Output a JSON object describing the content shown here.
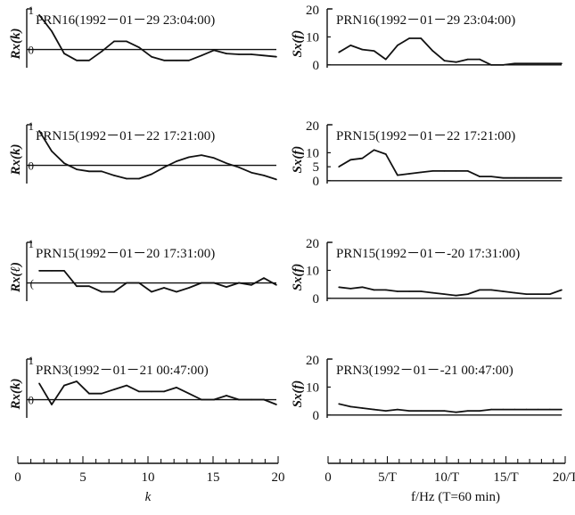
{
  "figure": {
    "left_xlabel": "k",
    "right_xlabel": "f/Hz  (T=60 min)"
  },
  "colors": {
    "ink": "#111111"
  },
  "chart_data": [
    {
      "type": "line",
      "column": "left",
      "row": 0,
      "title": "PRN16(1992－01－29  23:04:00)",
      "ylabel": "Rx(k)",
      "yticks": [
        "1",
        "0"
      ],
      "ylim": [
        -0.45,
        1.0
      ],
      "xlim": [
        0,
        20
      ],
      "x": [
        1,
        2,
        3,
        4,
        5,
        6,
        7,
        8,
        9,
        10,
        11,
        12,
        13,
        14,
        15,
        16,
        17,
        18,
        19,
        20
      ],
      "values": [
        0.85,
        0.45,
        -0.1,
        -0.27,
        -0.27,
        -0.05,
        0.2,
        0.2,
        0.05,
        -0.18,
        -0.27,
        -0.27,
        -0.27,
        -0.15,
        -0.02,
        -0.1,
        -0.12,
        -0.12,
        -0.15,
        -0.18
      ]
    },
    {
      "type": "line",
      "column": "left",
      "row": 1,
      "title": "PRN15(1992－01－22  17:21:00)",
      "ylabel": "Rx(k)",
      "yticks": [
        "1",
        "0"
      ],
      "ylim": [
        -0.45,
        1.0
      ],
      "xlim": [
        0,
        20
      ],
      "x": [
        1,
        2,
        3,
        4,
        5,
        6,
        7,
        8,
        9,
        10,
        11,
        12,
        13,
        14,
        15,
        16,
        17,
        18,
        19,
        20
      ],
      "values": [
        0.85,
        0.35,
        0.05,
        -0.1,
        -0.15,
        -0.15,
        -0.25,
        -0.33,
        -0.33,
        -0.22,
        -0.05,
        0.1,
        0.2,
        0.25,
        0.18,
        0.05,
        -0.05,
        -0.18,
        -0.25,
        -0.35
      ]
    },
    {
      "type": "line",
      "column": "left",
      "row": 2,
      "title": "PRN15(1992－01－20  17:31:00)",
      "ylabel": "Rx(ℓ)",
      "yticks": [
        "1",
        "("
      ],
      "ylim": [
        -0.45,
        1.0
      ],
      "xlim": [
        0,
        20
      ],
      "x": [
        1,
        2,
        3,
        4,
        5,
        6,
        7,
        8,
        9,
        10,
        11,
        12,
        13,
        14,
        15,
        16,
        17,
        18,
        19,
        20
      ],
      "values": [
        0.3,
        0.3,
        0.3,
        -0.08,
        -0.08,
        -0.22,
        -0.22,
        0.0,
        0.0,
        -0.22,
        -0.12,
        -0.22,
        -0.12,
        0.0,
        0.0,
        -0.1,
        0.0,
        -0.05,
        0.12,
        -0.05
      ]
    },
    {
      "type": "line",
      "column": "left",
      "row": 3,
      "title": "PRN3(1992－01－21  00:47:00)",
      "ylabel": "Rx(k)",
      "yticks": [
        "1",
        "0"
      ],
      "ylim": [
        -0.45,
        1.0
      ],
      "xlim": [
        0,
        20
      ],
      "x": [
        1,
        2,
        3,
        4,
        5,
        6,
        7,
        8,
        9,
        10,
        11,
        12,
        13,
        14,
        15,
        16,
        17,
        18,
        19,
        20
      ],
      "values": [
        0.4,
        -0.12,
        0.35,
        0.45,
        0.15,
        0.15,
        0.25,
        0.35,
        0.2,
        0.2,
        0.2,
        0.3,
        0.15,
        0.0,
        0.0,
        0.1,
        0.0,
        0.0,
        0.0,
        -0.12
      ]
    },
    {
      "type": "line",
      "column": "right",
      "row": 0,
      "title": "PRN16(1992－01－29  23:04:00)",
      "ylabel": "Sx(f)",
      "yticks": [
        "20",
        "10",
        "0"
      ],
      "ylim": [
        -1,
        20
      ],
      "xlim": [
        0,
        20
      ],
      "x": [
        1,
        2,
        3,
        4,
        5,
        6,
        7,
        8,
        9,
        10,
        11,
        12,
        13,
        14,
        15,
        16,
        17,
        18,
        19,
        20
      ],
      "values": [
        4.5,
        7,
        5.5,
        5,
        2,
        7,
        9.5,
        9.5,
        5,
        1.5,
        1,
        2,
        2,
        0,
        0,
        0.5,
        0.5,
        0.5,
        0.5,
        0.5
      ]
    },
    {
      "type": "line",
      "column": "right",
      "row": 1,
      "title": "PRN15(1992－01－22  17:21:00)",
      "ylabel": "Sx(f)",
      "yticks": [
        "20",
        "10",
        "5",
        "0"
      ],
      "ylim": [
        -1,
        20
      ],
      "xlim": [
        0,
        20
      ],
      "x": [
        1,
        2,
        3,
        4,
        5,
        6,
        7,
        8,
        9,
        10,
        11,
        12,
        13,
        14,
        15,
        16,
        17,
        18,
        19,
        20
      ],
      "values": [
        5,
        7.5,
        8,
        11,
        9.5,
        2,
        2.5,
        3,
        3.5,
        3.5,
        3.5,
        3.5,
        1.5,
        1.5,
        1,
        1,
        1,
        1,
        1,
        1
      ]
    },
    {
      "type": "line",
      "column": "right",
      "row": 2,
      "title": "PRN15(1992－01－-20  17:31:00)",
      "ylabel": "Sx(f)",
      "yticks": [
        "20",
        "10",
        "0"
      ],
      "ylim": [
        -1,
        20
      ],
      "xlim": [
        0,
        20
      ],
      "x": [
        1,
        2,
        3,
        4,
        5,
        6,
        7,
        8,
        9,
        10,
        11,
        12,
        13,
        14,
        15,
        16,
        17,
        18,
        19,
        20
      ],
      "values": [
        4,
        3.5,
        4,
        3,
        3,
        2.5,
        2.5,
        2.5,
        2,
        1.5,
        1,
        1.5,
        3,
        3,
        2.5,
        2,
        1.5,
        1.5,
        1.5,
        3
      ]
    },
    {
      "type": "line",
      "column": "right",
      "row": 3,
      "title": "PRN3(1992－01－-21  00:47:00)",
      "ylabel": "Sx(f)",
      "yticks": [
        "20",
        "10",
        "0"
      ],
      "ylim": [
        -1,
        20
      ],
      "xlim": [
        0,
        20
      ],
      "x": [
        1,
        2,
        3,
        4,
        5,
        6,
        7,
        8,
        9,
        10,
        11,
        12,
        13,
        14,
        15,
        16,
        17,
        18,
        19,
        20
      ],
      "values": [
        4,
        3,
        2.5,
        2,
        1.5,
        2,
        1.5,
        1.5,
        1.5,
        1.5,
        1,
        1.5,
        1.5,
        2,
        2,
        2,
        2,
        2,
        2,
        2
      ]
    },
    {
      "type": "axis",
      "column": "left",
      "tick_labels": [
        "0",
        "5",
        "10",
        "15",
        "20"
      ],
      "tick_values": [
        0,
        5,
        10,
        15,
        20
      ],
      "xlabel": "k"
    },
    {
      "type": "axis",
      "column": "right",
      "tick_labels": [
        "0",
        "5/T",
        "10/T",
        "15/T",
        "20/T"
      ],
      "tick_values": [
        0,
        5,
        10,
        15,
        20
      ],
      "xlabel": "f/Hz  (T=60 min)"
    }
  ]
}
